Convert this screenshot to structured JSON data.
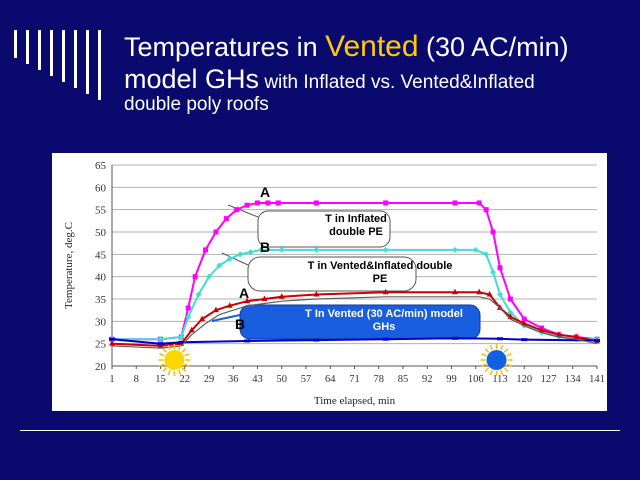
{
  "slide": {
    "title_part1": "Temperatures in ",
    "title_highlight": "Vented",
    "title_part2": " (30 AC/min)",
    "title_part3": "model GHs",
    "title_part4": " with Inflated vs. Vented&Inflated",
    "title_part5": "double poly roofs",
    "colors": {
      "background": "#0a0a6e",
      "highlight": "#ffcc00"
    }
  },
  "chart_data": {
    "type": "line",
    "xlabel": "Time elapsed, min",
    "ylabel": "Temperature, deg.C",
    "x_ticks": [
      "1",
      "8",
      "15",
      "22",
      "29",
      "36",
      "43",
      "50",
      "57",
      "64",
      "71",
      "78",
      "85",
      "92",
      "99",
      "106",
      "113",
      "120",
      "127",
      "134",
      "141"
    ],
    "y_ticks": [
      "20",
      "25",
      "30",
      "35",
      "40",
      "45",
      "50",
      "55",
      "60",
      "65"
    ],
    "xlim": [
      1,
      141
    ],
    "ylim": [
      20,
      65
    ],
    "grid": "horizontal",
    "series": [
      {
        "color": "#ff00ff",
        "marker": "square",
        "x": [
          1,
          15,
          21,
          23,
          25,
          28,
          31,
          34,
          37,
          40,
          43,
          46,
          49,
          60,
          80,
          100,
          107,
          109,
          111,
          113,
          116,
          120,
          125,
          130,
          135,
          141
        ],
        "y": [
          26,
          26,
          26.5,
          33,
          40,
          46,
          50,
          53,
          55,
          56,
          56.5,
          56.5,
          56.5,
          56.5,
          56.5,
          56.5,
          56.5,
          55,
          50,
          42,
          35,
          30.5,
          28.5,
          27,
          26.5,
          26
        ]
      },
      {
        "color": "#40e0d0",
        "marker": "diamond",
        "x": [
          1,
          15,
          21,
          23,
          26,
          29,
          32,
          35,
          38,
          41,
          44,
          50,
          60,
          80,
          100,
          106,
          109,
          111,
          113,
          116,
          120,
          125,
          130,
          135,
          141
        ],
        "y": [
          26,
          26,
          26.5,
          31,
          36,
          40,
          42.5,
          44,
          45,
          45.5,
          46,
          46,
          46,
          46,
          46,
          46,
          45,
          41,
          36,
          32,
          29,
          27.5,
          26.5,
          26,
          26
        ]
      },
      {
        "color": "#cc0000",
        "marker": "triangle",
        "x": [
          1,
          15,
          21,
          24,
          27,
          31,
          35,
          40,
          45,
          50,
          60,
          80,
          100,
          107,
          110,
          113,
          116,
          120,
          125,
          130,
          135,
          141
        ],
        "y": [
          25,
          24.5,
          25,
          28,
          30.5,
          32.5,
          33.5,
          34.5,
          35,
          35.5,
          36,
          36.5,
          36.5,
          36.5,
          36,
          33,
          31,
          29.5,
          28,
          27,
          26.5,
          25.5
        ]
      },
      {
        "color": "#0000cc",
        "marker": "dash",
        "x": [
          1,
          15,
          21,
          40,
          60,
          80,
          100,
          113,
          120,
          141
        ],
        "y": [
          26,
          25,
          25.3,
          25.6,
          25.8,
          26,
          26.2,
          26.1,
          25.9,
          25.7
        ]
      },
      {
        "color": "#606060",
        "marker": "none",
        "x": [
          1,
          15,
          21,
          24,
          28,
          32,
          36,
          40,
          45,
          50,
          60,
          80,
          100,
          107,
          110,
          113,
          116,
          120,
          125,
          130,
          135,
          141
        ],
        "y": [
          24.5,
          24,
          24.5,
          27,
          29.5,
          31.5,
          32.5,
          33.5,
          34,
          34.5,
          35,
          35.5,
          35.5,
          35.5,
          35,
          33,
          30.5,
          29,
          27.5,
          26.5,
          26,
          25
        ]
      }
    ],
    "annotations": {
      "label_a1": "A",
      "label_b1": "B",
      "label_a2": "A",
      "label_b2": "B",
      "callout_1": "T in Inflated double PE",
      "callout_2": "T in Vented&Inflated double PE",
      "callout_3": "T In Vented (30 AC/min) model GHs"
    }
  }
}
